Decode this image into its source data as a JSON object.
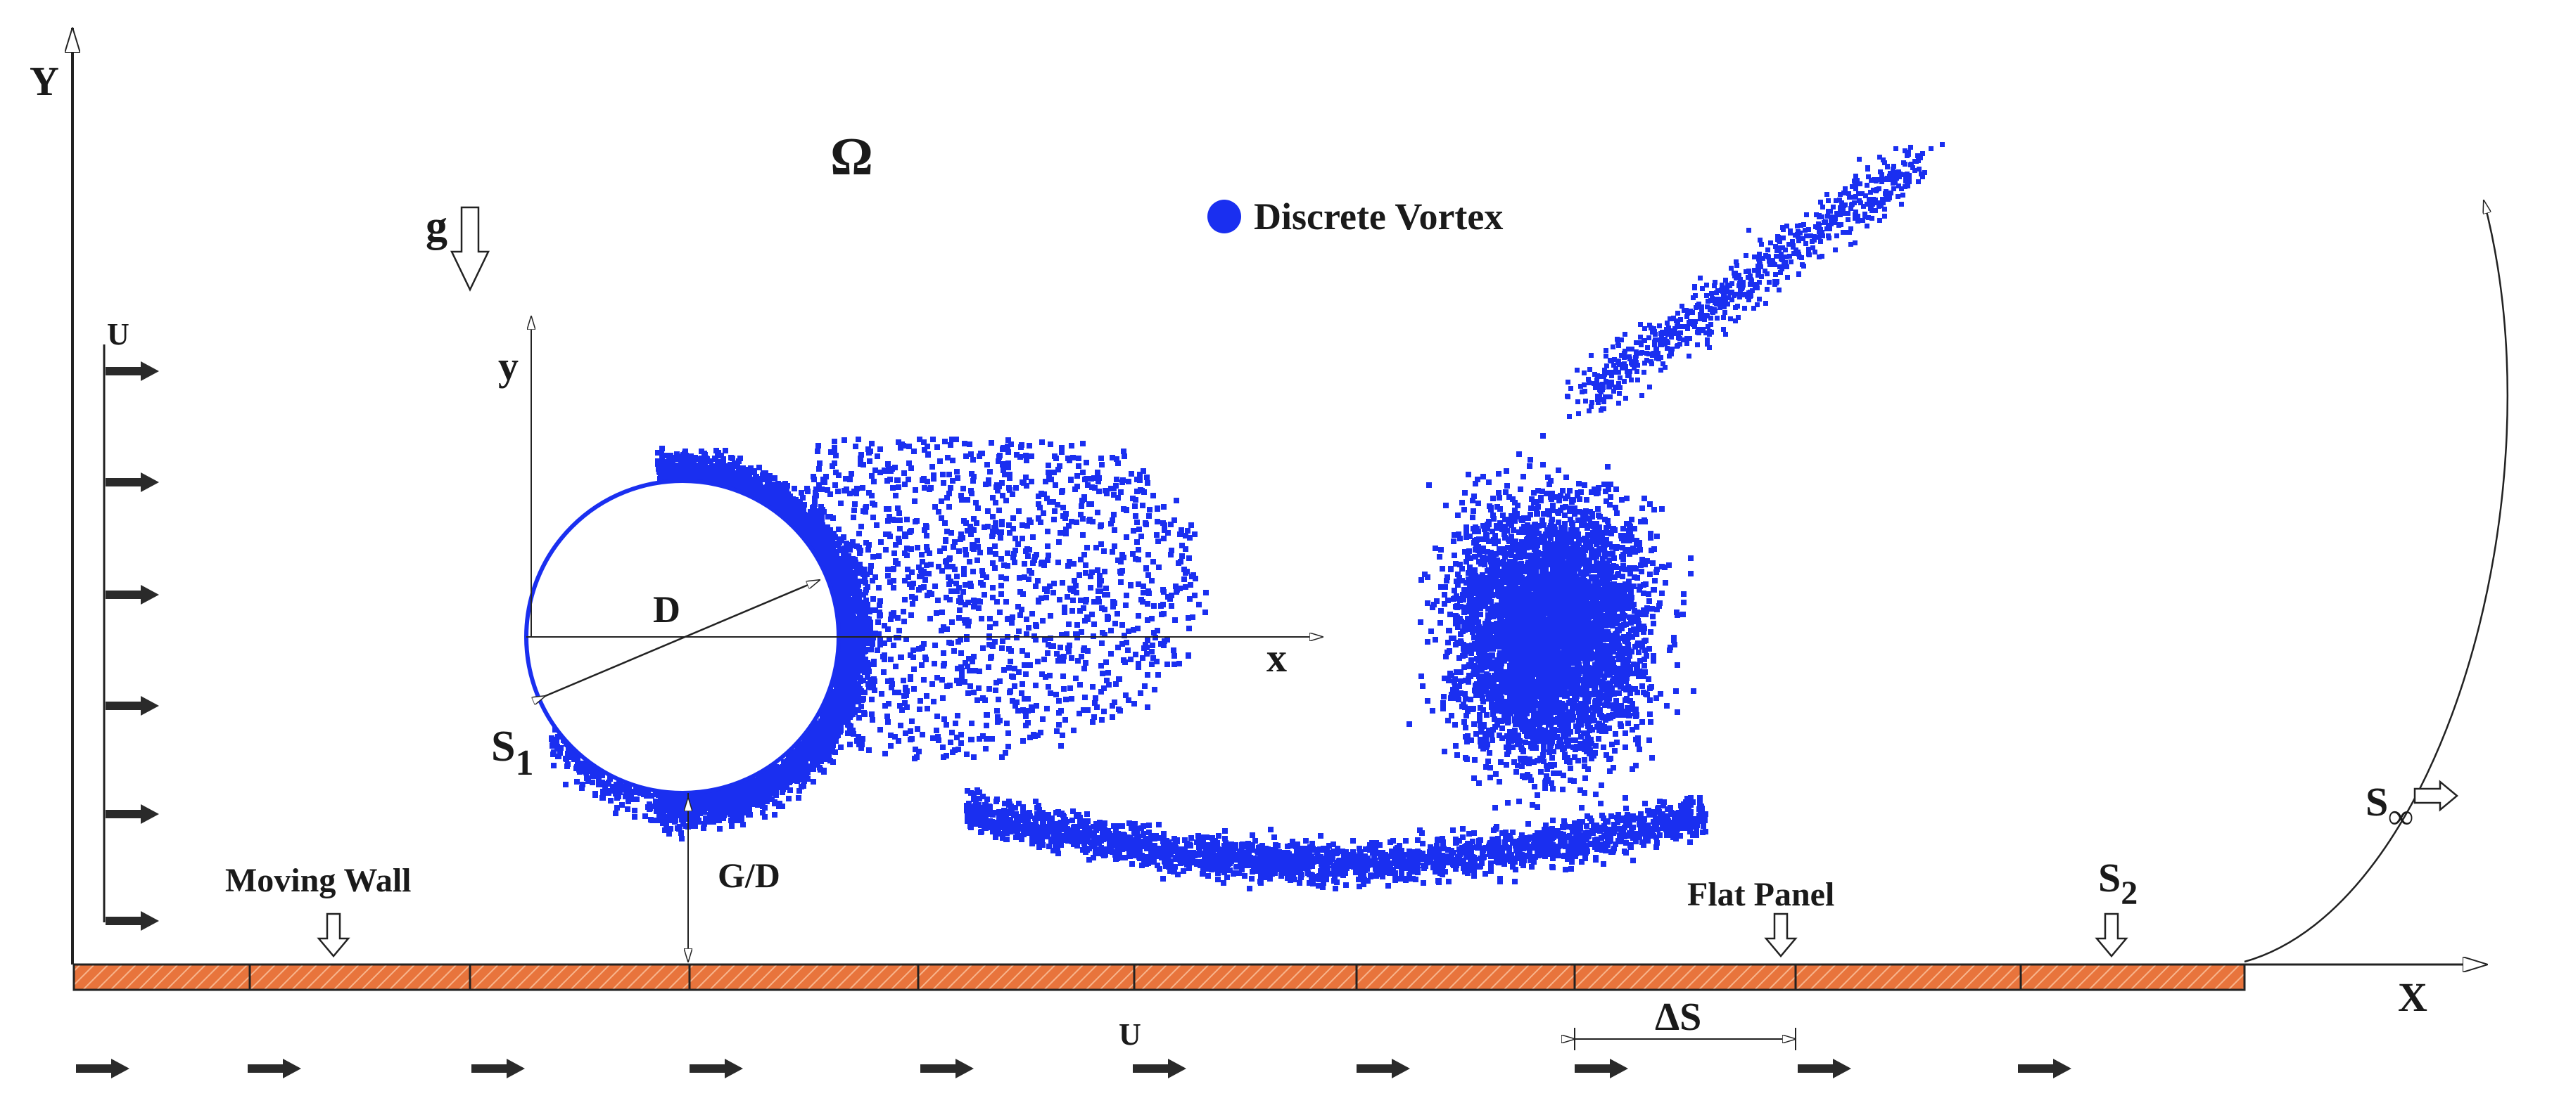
{
  "labels": {
    "global_y_axis": "Y",
    "global_x_axis": "X",
    "domain_omega": "Ω",
    "gravity": "g",
    "legend": "Discrete Vortex",
    "inlet_velocity": "U",
    "wall_velocity": "U",
    "local_y_axis": "y",
    "local_x_axis": "x",
    "diameter": "D",
    "cylinder_surface": "S",
    "cylinder_surface_sub": "1",
    "gap_ratio": "G/D",
    "moving_wall": "Moving Wall",
    "flat_panel": "Flat Panel",
    "panel_surface": "S",
    "panel_surface_sub": "2",
    "far_field": "S",
    "far_field_sub": "∞",
    "panel_length": "ΔS"
  },
  "colors": {
    "vortex": "#1a2ff0",
    "panel_fill": "#e8743c",
    "panel_hatch": "#f7b48c",
    "arrow": "#2a2a2a",
    "line": "#222222"
  },
  "icons": {
    "legend_marker": "filled-circle",
    "flow_arrow": "right-arrow",
    "gravity_arrow": "hollow-down-arrow",
    "marker_arrow": "hollow-down-arrow"
  }
}
